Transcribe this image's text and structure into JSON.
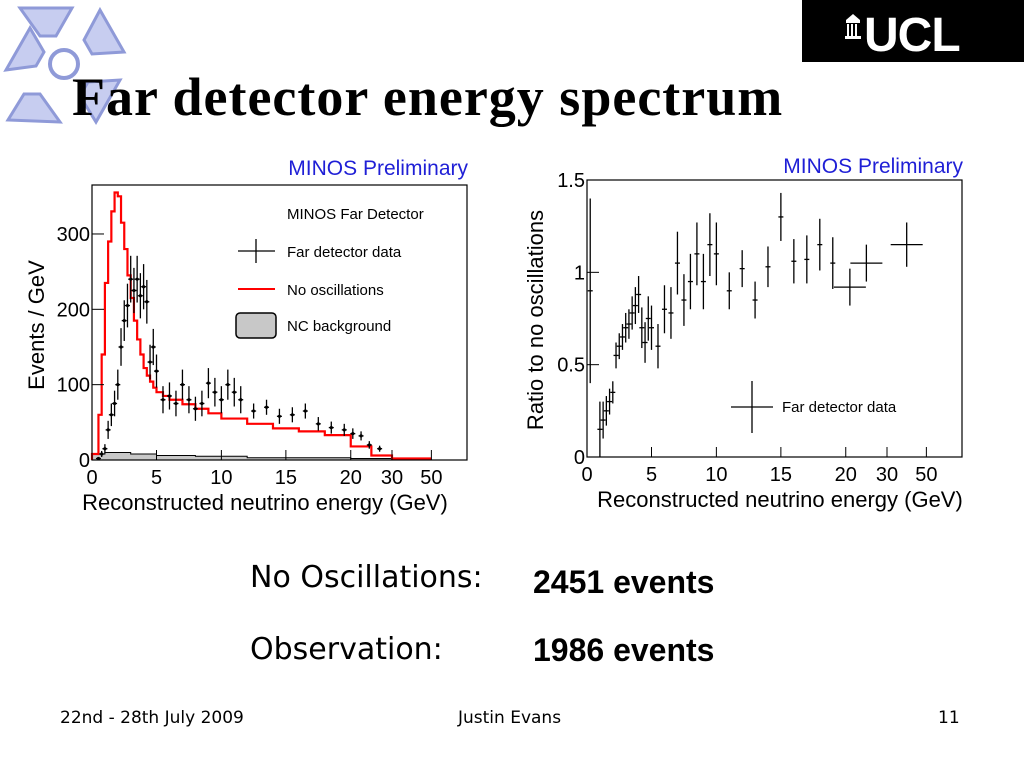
{
  "slide": {
    "title": "Far detector energy spectrum",
    "ucl_logo_text": "UCL"
  },
  "stats": {
    "no_osc_label": "No Oscillations:",
    "no_osc_value": "2451 events",
    "obs_label": "Observation:",
    "obs_value": "1986 events"
  },
  "footer": {
    "date": "22nd - 28th July 2009",
    "author": "Justin Evans",
    "page": "11"
  },
  "colors": {
    "prediction": "#ff0000",
    "preliminary": "#1f1fd6",
    "nc_fill": "#c8c8c8",
    "data": "#000000"
  },
  "chart_data": [
    {
      "type": "line",
      "title": "MINOS Preliminary",
      "legend_title": "MINOS Far Detector",
      "xlabel": "Reconstructed neutrino energy (GeV)",
      "ylabel": "Events / GeV",
      "x_ticks": [
        "0",
        "5",
        "10",
        "15",
        "20",
        "30",
        "50"
      ],
      "y_ticks": [
        0,
        100,
        200,
        300
      ],
      "ylim": [
        0,
        365
      ],
      "legend": [
        "Far detector data",
        "No oscillations",
        "NC background"
      ],
      "legend_position": "top-right",
      "data_points": [
        {
          "x": 0.5,
          "y": 2,
          "err": 2
        },
        {
          "x": 0.75,
          "y": 8,
          "err": 4
        },
        {
          "x": 1.0,
          "y": 15,
          "err": 6
        },
        {
          "x": 1.25,
          "y": 40,
          "err": 12
        },
        {
          "x": 1.5,
          "y": 60,
          "err": 15
        },
        {
          "x": 1.75,
          "y": 75,
          "err": 17
        },
        {
          "x": 2.0,
          "y": 100,
          "err": 20
        },
        {
          "x": 2.25,
          "y": 150,
          "err": 25
        },
        {
          "x": 2.5,
          "y": 185,
          "err": 27
        },
        {
          "x": 2.75,
          "y": 205,
          "err": 29
        },
        {
          "x": 3.0,
          "y": 240,
          "err": 31
        },
        {
          "x": 3.25,
          "y": 225,
          "err": 30
        },
        {
          "x": 3.5,
          "y": 240,
          "err": 31
        },
        {
          "x": 3.75,
          "y": 218,
          "err": 30
        },
        {
          "x": 4.0,
          "y": 230,
          "err": 30
        },
        {
          "x": 4.25,
          "y": 210,
          "err": 29
        },
        {
          "x": 4.5,
          "y": 130,
          "err": 23
        },
        {
          "x": 4.75,
          "y": 150,
          "err": 24
        },
        {
          "x": 5.0,
          "y": 118,
          "err": 22
        },
        {
          "x": 5.5,
          "y": 80,
          "err": 18
        },
        {
          "x": 6.0,
          "y": 85,
          "err": 18
        },
        {
          "x": 6.5,
          "y": 75,
          "err": 17
        },
        {
          "x": 7.0,
          "y": 100,
          "err": 20
        },
        {
          "x": 7.5,
          "y": 80,
          "err": 18
        },
        {
          "x": 8.0,
          "y": 68,
          "err": 16
        },
        {
          "x": 8.5,
          "y": 75,
          "err": 17
        },
        {
          "x": 9.0,
          "y": 102,
          "err": 20
        },
        {
          "x": 9.5,
          "y": 90,
          "err": 19
        },
        {
          "x": 10.0,
          "y": 80,
          "err": 18
        },
        {
          "x": 10.5,
          "y": 100,
          "err": 20
        },
        {
          "x": 11.0,
          "y": 90,
          "err": 19
        },
        {
          "x": 11.5,
          "y": 80,
          "err": 18
        },
        {
          "x": 12.5,
          "y": 65,
          "err": 10
        },
        {
          "x": 13.5,
          "y": 70,
          "err": 10
        },
        {
          "x": 14.5,
          "y": 58,
          "err": 10
        },
        {
          "x": 15.5,
          "y": 60,
          "err": 10
        },
        {
          "x": 16.5,
          "y": 65,
          "err": 10
        },
        {
          "x": 17.5,
          "y": 48,
          "err": 9
        },
        {
          "x": 18.5,
          "y": 43,
          "err": 8
        },
        {
          "x": 19.5,
          "y": 40,
          "err": 8
        },
        {
          "x": 20.5,
          "y": 35,
          "err": 7
        },
        {
          "x": 22.5,
          "y": 32,
          "err": 6
        },
        {
          "x": 24.5,
          "y": 20,
          "err": 5
        },
        {
          "x": 27.0,
          "y": 15,
          "err": 4
        }
      ],
      "no_oscillations": {
        "edges": [
          0,
          0.5,
          0.75,
          1.0,
          1.25,
          1.5,
          1.75,
          2.0,
          2.25,
          2.5,
          2.75,
          3.0,
          3.25,
          3.5,
          3.75,
          4.0,
          4.25,
          4.5,
          4.75,
          5.0,
          5.5,
          6.0,
          7.0,
          8.0,
          9.0,
          10.0,
          12.0,
          14.0,
          16.0,
          18.0,
          20.0,
          25.0,
          30.0,
          50.0
        ],
        "values": [
          8,
          60,
          140,
          235,
          290,
          330,
          355,
          350,
          315,
          280,
          245,
          215,
          185,
          160,
          140,
          122,
          112,
          104,
          96,
          90,
          85,
          80,
          74,
          68,
          62,
          55,
          48,
          42,
          38,
          33,
          18,
          6,
          2
        ]
      },
      "nc_background": {
        "edges": [
          0,
          1,
          2,
          3,
          5,
          8,
          12,
          20,
          30,
          50
        ],
        "values": [
          8,
          10,
          10,
          8,
          6,
          5,
          3,
          2,
          1
        ]
      }
    },
    {
      "type": "scatter",
      "title": "MINOS Preliminary",
      "xlabel": "Reconstructed neutrino energy (GeV)",
      "ylabel": "Ratio to no oscillations",
      "x_ticks": [
        "0",
        "5",
        "10",
        "15",
        "20",
        "30",
        "50"
      ],
      "y_ticks": [
        "0",
        "0.5",
        "1",
        "1.5"
      ],
      "ylim": [
        0,
        1.5
      ],
      "legend": [
        "Far detector data"
      ],
      "legend_position": "bottom-right",
      "points": [
        {
          "x": 0.25,
          "y": 0.9,
          "err": 0.5
        },
        {
          "x": 1.0,
          "y": 0.15,
          "err": 0.15
        },
        {
          "x": 1.25,
          "y": 0.2,
          "err": 0.1
        },
        {
          "x": 1.5,
          "y": 0.25,
          "err": 0.08
        },
        {
          "x": 1.75,
          "y": 0.3,
          "err": 0.07
        },
        {
          "x": 2.0,
          "y": 0.35,
          "err": 0.06
        },
        {
          "x": 2.25,
          "y": 0.55,
          "err": 0.07
        },
        {
          "x": 2.5,
          "y": 0.6,
          "err": 0.07
        },
        {
          "x": 2.75,
          "y": 0.65,
          "err": 0.07
        },
        {
          "x": 3.0,
          "y": 0.7,
          "err": 0.08
        },
        {
          "x": 3.25,
          "y": 0.72,
          "err": 0.08
        },
        {
          "x": 3.5,
          "y": 0.78,
          "err": 0.09
        },
        {
          "x": 3.75,
          "y": 0.82,
          "err": 0.1
        },
        {
          "x": 4.0,
          "y": 0.88,
          "err": 0.1
        },
        {
          "x": 4.25,
          "y": 0.7,
          "err": 0.11
        },
        {
          "x": 4.5,
          "y": 0.62,
          "err": 0.11
        },
        {
          "x": 4.75,
          "y": 0.75,
          "err": 0.12
        },
        {
          "x": 5.0,
          "y": 0.7,
          "err": 0.12
        },
        {
          "x": 5.5,
          "y": 0.6,
          "err": 0.12
        },
        {
          "x": 6.0,
          "y": 0.8,
          "err": 0.13
        },
        {
          "x": 6.5,
          "y": 0.78,
          "err": 0.14
        },
        {
          "x": 7.0,
          "y": 1.05,
          "err": 0.17
        },
        {
          "x": 7.5,
          "y": 0.85,
          "err": 0.14
        },
        {
          "x": 8.0,
          "y": 0.95,
          "err": 0.15
        },
        {
          "x": 8.5,
          "y": 1.1,
          "err": 0.17
        },
        {
          "x": 9.0,
          "y": 0.95,
          "err": 0.15
        },
        {
          "x": 9.5,
          "y": 1.15,
          "err": 0.17
        },
        {
          "x": 10.0,
          "y": 1.1,
          "err": 0.17
        },
        {
          "x": 11.0,
          "y": 0.9,
          "err": 0.1
        },
        {
          "x": 12.0,
          "y": 1.02,
          "err": 0.1
        },
        {
          "x": 13.0,
          "y": 0.85,
          "err": 0.1
        },
        {
          "x": 14.0,
          "y": 1.03,
          "err": 0.11
        },
        {
          "x": 15.0,
          "y": 1.3,
          "err": 0.13
        },
        {
          "x": 16.0,
          "y": 1.06,
          "err": 0.12
        },
        {
          "x": 17.0,
          "y": 1.07,
          "err": 0.13
        },
        {
          "x": 18.0,
          "y": 1.15,
          "err": 0.14
        },
        {
          "x": 19.0,
          "y": 1.05,
          "err": 0.14
        },
        {
          "x": 21.0,
          "y": 0.92,
          "err": 0.1
        },
        {
          "x": 25.0,
          "y": 1.05,
          "err": 0.1
        },
        {
          "x": 40.0,
          "y": 1.15,
          "err": 0.12
        }
      ]
    }
  ]
}
